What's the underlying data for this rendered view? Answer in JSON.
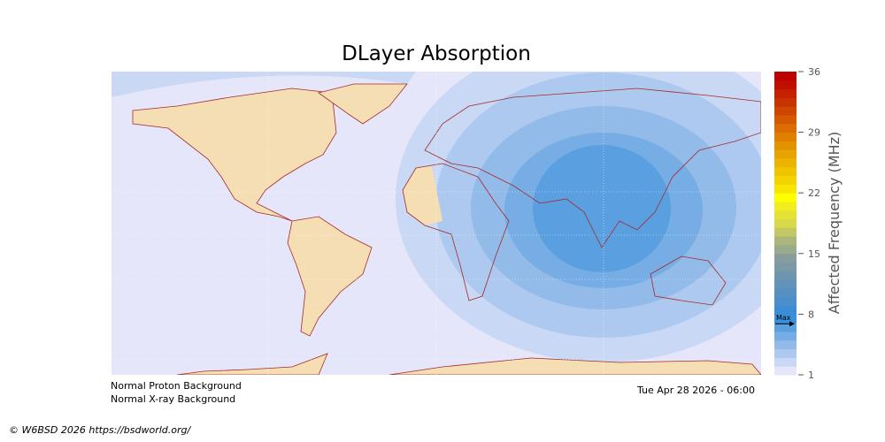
{
  "title": "DLayer Absorption",
  "colorbar": {
    "label": "Affected Frequency (MHz)",
    "ticks": [
      "36",
      "29",
      "22",
      "15",
      "8",
      "1"
    ],
    "range": [
      1,
      36
    ],
    "max_marker_label": "Max",
    "max_marker_value": 7,
    "colors": [
      "#e6e6fa",
      "#c9d8f4",
      "#aec9ef",
      "#92bbe9",
      "#76ade4",
      "#5a9fdf",
      "#3a90da",
      "#3d8dd4",
      "#4a8ecb",
      "#5690c2",
      "#6393b8",
      "#6f96af",
      "#7c99a6",
      "#899c9d",
      "#9aaa8c",
      "#acb67c",
      "#c4c863",
      "#d7d94a",
      "#e4e235",
      "#f0ee1f",
      "#ffff00",
      "#f7e400",
      "#f3d400",
      "#efc400",
      "#ebb400",
      "#e7a400",
      "#e39200",
      "#df8000",
      "#db6c00",
      "#d55900",
      "#cf4600",
      "#c93300",
      "#c52000",
      "#c10e00",
      "#bd0000"
    ]
  },
  "map": {
    "land_color": "#f5deb3",
    "coast_color": "#a52a2a",
    "background_color": "#e6e6fa",
    "contour_levels": [
      2,
      3,
      4,
      5,
      6
    ]
  },
  "status": {
    "proton": "Normal Proton Background",
    "xray": "Normal X-ray Background",
    "timestamp": "Tue Apr 28 2026 - 06:00"
  },
  "copyright": "© W6BSD 2026 https://bsdworld.org/"
}
